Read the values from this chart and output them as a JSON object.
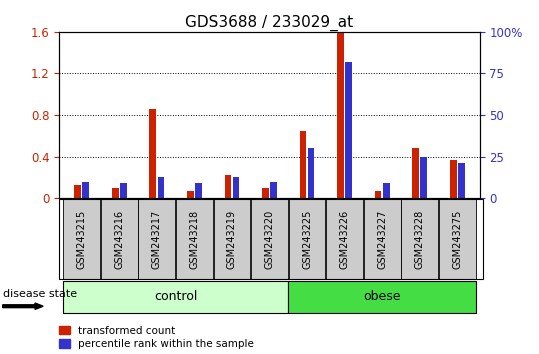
{
  "title": "GDS3688 / 233029_at",
  "samples": [
    "GSM243215",
    "GSM243216",
    "GSM243217",
    "GSM243218",
    "GSM243219",
    "GSM243220",
    "GSM243225",
    "GSM243226",
    "GSM243227",
    "GSM243228",
    "GSM243275"
  ],
  "transformed_count": [
    0.13,
    0.1,
    0.86,
    0.07,
    0.22,
    0.1,
    0.65,
    1.6,
    0.07,
    0.48,
    0.37
  ],
  "percentile_rank_pct": [
    10,
    9,
    13,
    9,
    13,
    10,
    30,
    82,
    9,
    25,
    21
  ],
  "groups": [
    {
      "label": "control",
      "start": 0,
      "end": 6,
      "color": "#ccffcc"
    },
    {
      "label": "obese",
      "start": 6,
      "end": 11,
      "color": "#44dd44"
    }
  ],
  "ylim_left": [
    0,
    1.6
  ],
  "ylim_right": [
    0,
    100
  ],
  "yticks_left": [
    0,
    0.4,
    0.8,
    1.2,
    1.6
  ],
  "ytick_labels_left": [
    "0",
    "0.4",
    "0.8",
    "1.2",
    "1.6"
  ],
  "yticks_right": [
    0,
    25,
    50,
    75,
    100
  ],
  "ytick_labels_right": [
    "0",
    "25",
    "50",
    "75",
    "100%"
  ],
  "bar_color_red": "#cc2200",
  "bar_color_blue": "#3333cc",
  "bar_width": 0.18,
  "legend_red": "transformed count",
  "legend_blue": "percentile rank within the sample",
  "xlabel_group": "disease state",
  "tick_label_bg": "#cccccc",
  "figure_bg": "#ffffff",
  "title_fontsize": 11,
  "axis_fontsize": 8.5
}
